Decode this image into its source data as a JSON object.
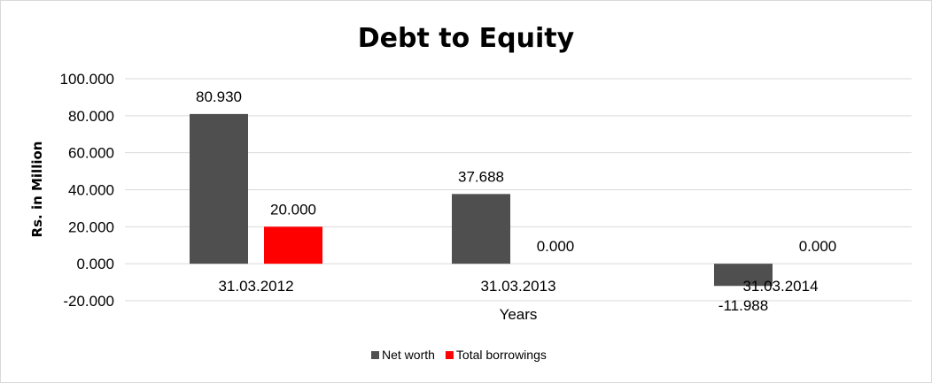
{
  "chart_data": {
    "type": "bar",
    "title": "Debt to Equity",
    "xlabel": "Years",
    "ylabel": "Rs. in Million",
    "categories": [
      "31.03.2012",
      "31.03.2013",
      "31.03.2014"
    ],
    "series": [
      {
        "name": "Net worth",
        "color": "#4f4f4f",
        "values": [
          80.93,
          37.688,
          -11.988
        ],
        "labels": [
          "80.930",
          "37.688",
          "-11.988"
        ]
      },
      {
        "name": "Total borrowings",
        "color": "#ff0000",
        "values": [
          20.0,
          0.0,
          0.0
        ],
        "labels": [
          "20.000",
          "0.000",
          "0.000"
        ]
      }
    ],
    "yticks": [
      "-20.000",
      "0.000",
      "20.000",
      "40.000",
      "60.000",
      "80.000",
      "100.000"
    ],
    "ylim": [
      -20,
      100
    ],
    "grid": true,
    "legend": "bottom"
  }
}
